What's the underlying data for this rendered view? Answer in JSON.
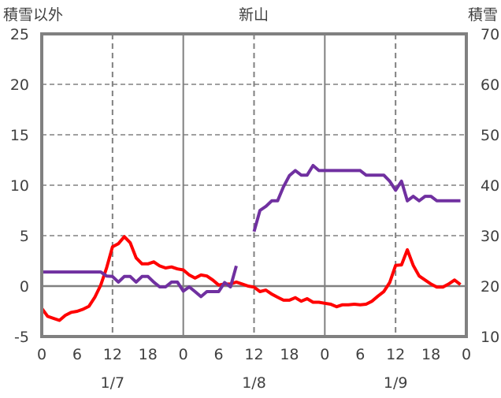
{
  "chart_data": {
    "type": "line",
    "title": "新山",
    "ylabel_left": "積雪以外",
    "ylabel_right": "積雪",
    "ylim_left": [
      -5,
      25
    ],
    "ylim_right": [
      10,
      70
    ],
    "yticks_left": [
      "-5",
      "0",
      "5",
      "10",
      "15",
      "20",
      "25"
    ],
    "yticks_right": [
      "10",
      "20",
      "30",
      "40",
      "50",
      "60",
      "70"
    ],
    "xlim_hours": [
      0,
      72
    ],
    "xticks": [
      "0",
      "6",
      "12",
      "18",
      "0",
      "6",
      "12",
      "18",
      "0",
      "6",
      "12",
      "18",
      "0"
    ],
    "date_labels": [
      {
        "hour": 12,
        "label": "1/7"
      },
      {
        "hour": 36,
        "label": "1/8"
      },
      {
        "hour": 60,
        "label": "1/9"
      }
    ],
    "grid": true,
    "series": [
      {
        "name": "積雪以外",
        "axis": "left",
        "color": "#ff0000",
        "values": [
          -2.2,
          -3.0,
          -3.2,
          -3.4,
          -2.9,
          -2.6,
          -2.5,
          -2.3,
          -2.0,
          -1.1,
          0.1,
          1.8,
          3.9,
          4.2,
          4.9,
          4.3,
          2.8,
          2.2,
          2.2,
          2.4,
          2.0,
          1.8,
          1.9,
          1.7,
          1.6,
          1.1,
          0.8,
          1.1,
          1.0,
          0.6,
          0.1,
          0.2,
          0.2,
          0.4,
          0.2,
          0.0,
          -0.1,
          -0.55,
          -0.4,
          -0.8,
          -1.1,
          -1.4,
          -1.4,
          -1.15,
          -1.5,
          -1.25,
          -1.6,
          -1.6,
          -1.7,
          -1.8,
          -2.05,
          -1.85,
          -1.85,
          -1.8,
          -1.85,
          -1.8,
          -1.5,
          -1.0,
          -0.55,
          0.35,
          2.05,
          2.1,
          3.6,
          2.05,
          1.0,
          0.6,
          0.2,
          -0.1,
          -0.1,
          0.2,
          0.6,
          0.15
        ]
      },
      {
        "name": "積雪",
        "axis": "right",
        "color": "#7030a0",
        "values": [
          22.8,
          22.8,
          22.8,
          22.8,
          22.8,
          22.8,
          22.8,
          22.8,
          22.8,
          22.8,
          22.8,
          22.0,
          21.9,
          20.8,
          21.9,
          21.9,
          20.8,
          21.9,
          21.9,
          20.8,
          19.85,
          19.85,
          20.8,
          20.8,
          19.0,
          19.85,
          18.9,
          17.9,
          18.9,
          18.9,
          18.9,
          20.7,
          19.85,
          24.0,
          null,
          null,
          30.8,
          35.0,
          35.8,
          36.9,
          36.9,
          39.7,
          41.9,
          42.9,
          42.0,
          42.0,
          43.9,
          42.9,
          42.9,
          42.9,
          42.9,
          42.9,
          42.9,
          42.9,
          42.9,
          42.0,
          42.0,
          42.0,
          42.0,
          40.8,
          39.0,
          40.8,
          36.9,
          37.8,
          36.9,
          37.8,
          37.8,
          36.9,
          36.9,
          36.9,
          36.9,
          36.9
        ]
      }
    ]
  }
}
